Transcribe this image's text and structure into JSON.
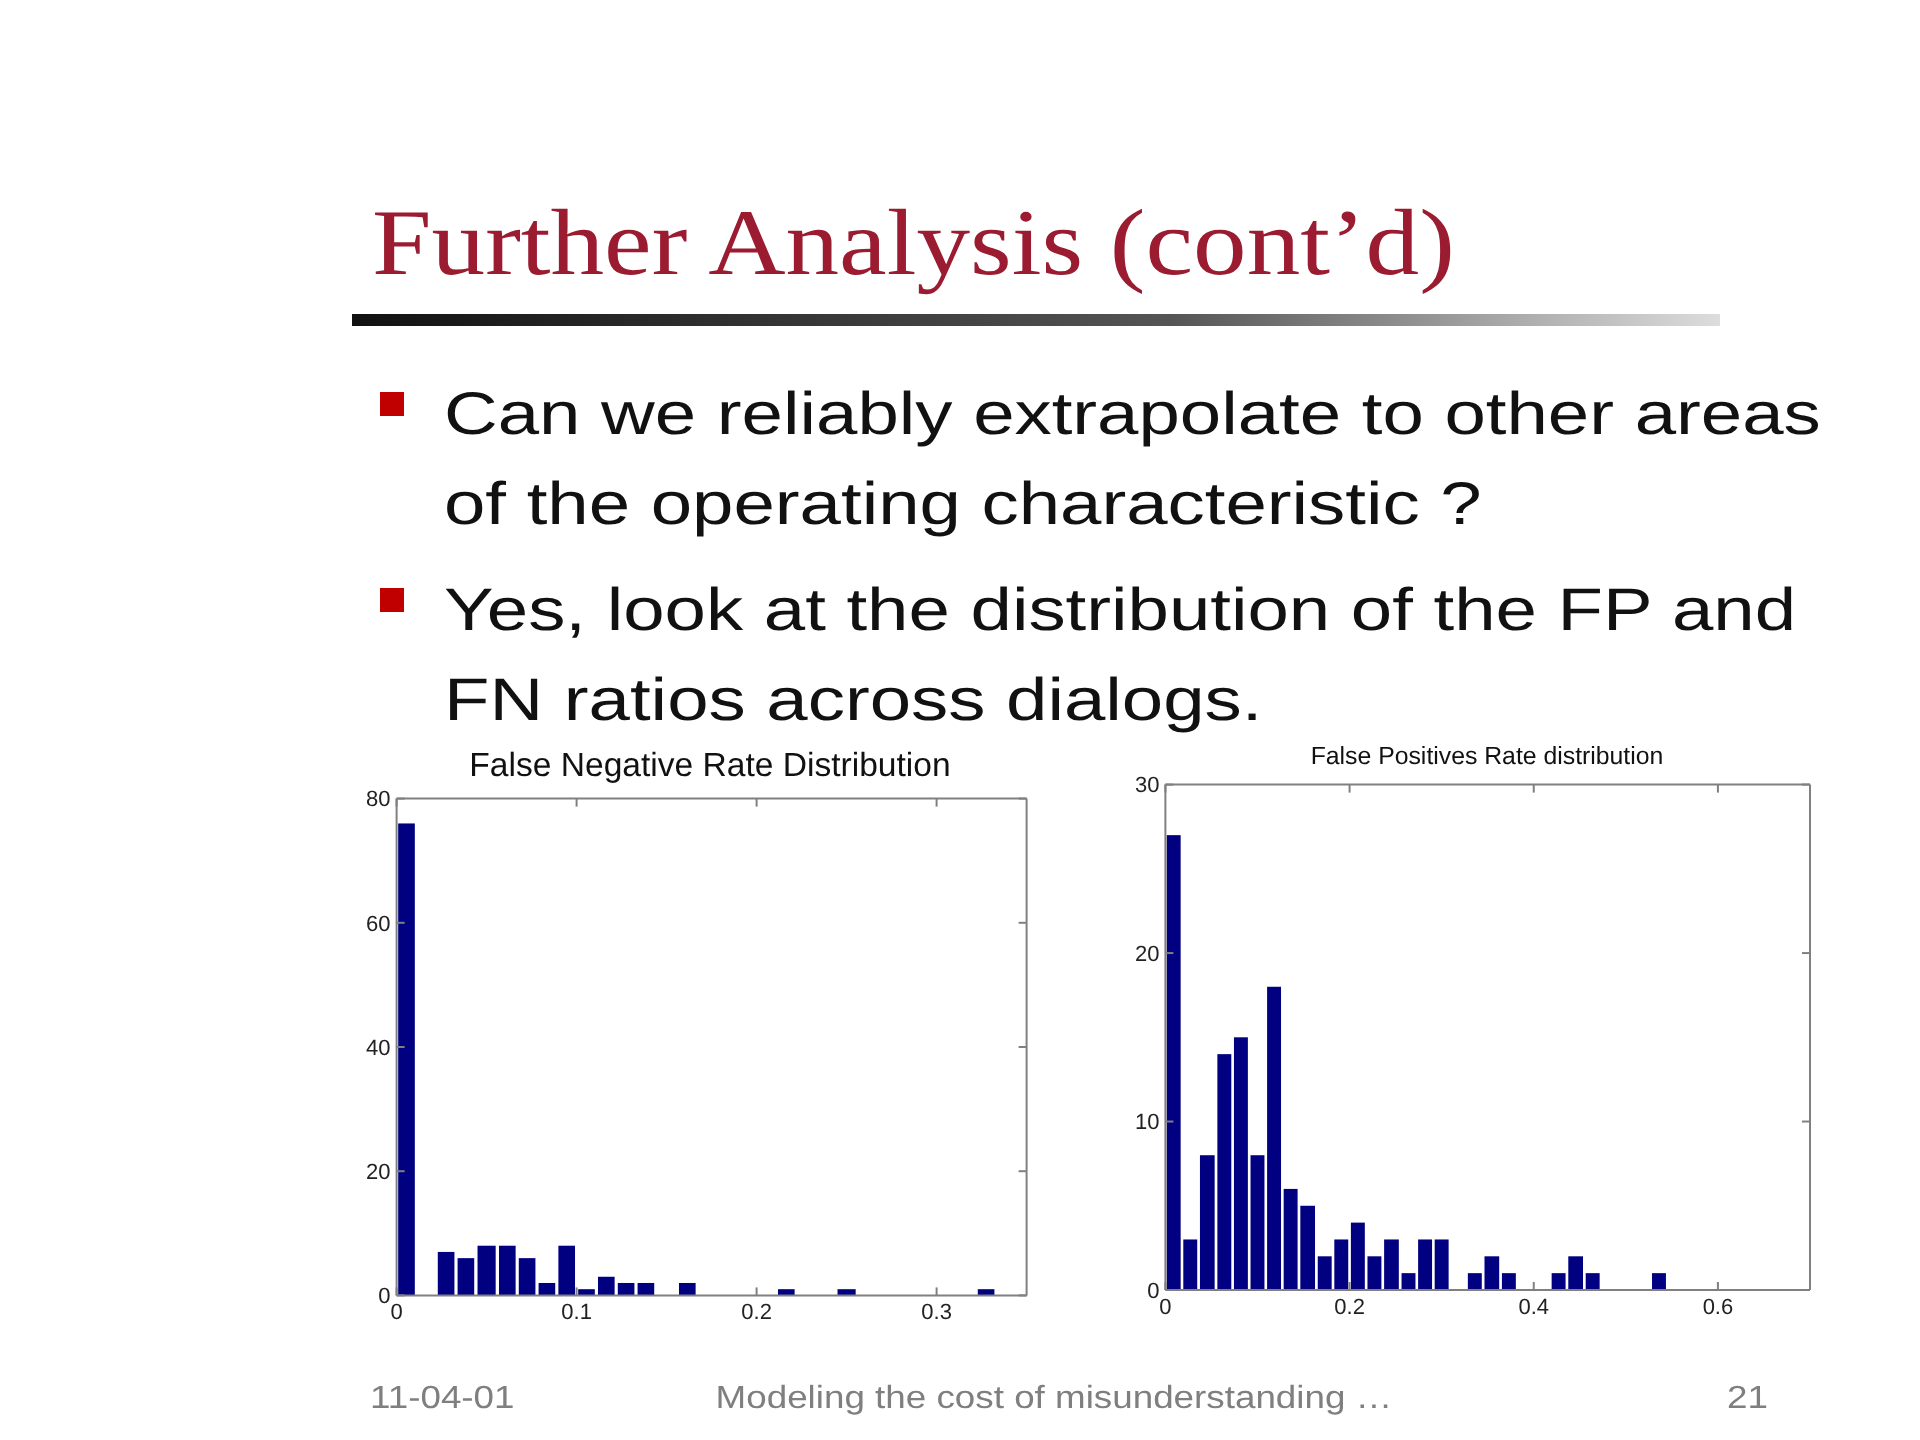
{
  "chart_data": [
    {
      "type": "other",
      "title": "Further Analysis (cont’d)",
      "annotations": [
        "Can we reliably extrapolate to other areas of the operating characteristic ?",
        "Yes, look at the distribution of the FP and FN ratios across dialogs.",
        "11-04-01",
        "Modeling the cost of misunderstanding …",
        "21"
      ]
    },
    {
      "type": "histogram",
      "title": "False Negative Rate Distribution",
      "color": "#000080",
      "bins": [
        0,
        0.011,
        0.022,
        0.033,
        0.044,
        0.056,
        0.067,
        0.078,
        0.089,
        0.1,
        0.111,
        0.122,
        0.133,
        0.144,
        0.156,
        0.167,
        0.211,
        0.222,
        0.244,
        0.256,
        0.322,
        0.333
      ],
      "values": [
        76,
        0,
        7,
        6,
        8,
        8,
        6,
        2,
        8,
        1,
        3,
        2,
        2,
        0,
        2,
        0,
        1,
        0,
        1,
        0,
        1
      ],
      "xlim": [
        0,
        0.35
      ],
      "xticks": [
        0,
        0.1,
        0.2,
        0.3
      ],
      "ylim": [
        0,
        80
      ],
      "yticks": [
        0,
        20,
        40,
        60,
        80
      ]
    },
    {
      "type": "histogram",
      "title": "False Positives Rate distribution",
      "color": "#000080",
      "bins": [
        0,
        0.018,
        0.036,
        0.055,
        0.073,
        0.091,
        0.109,
        0.127,
        0.145,
        0.164,
        0.182,
        0.2,
        0.218,
        0.236,
        0.255,
        0.273,
        0.291,
        0.309,
        0.327,
        0.345,
        0.364,
        0.382,
        0.418,
        0.436,
        0.455,
        0.473,
        0.527,
        0.545
      ],
      "values": [
        27,
        3,
        8,
        14,
        15,
        8,
        18,
        6,
        5,
        2,
        3,
        4,
        2,
        3,
        1,
        3,
        3,
        0,
        1,
        2,
        1,
        0,
        1,
        2,
        1,
        0,
        1
      ],
      "xlim": [
        0,
        0.7
      ],
      "xticks": [
        0,
        0.2,
        0.4,
        0.6
      ],
      "ylim": [
        0,
        30
      ],
      "yticks": [
        0,
        10,
        20,
        30
      ]
    }
  ]
}
